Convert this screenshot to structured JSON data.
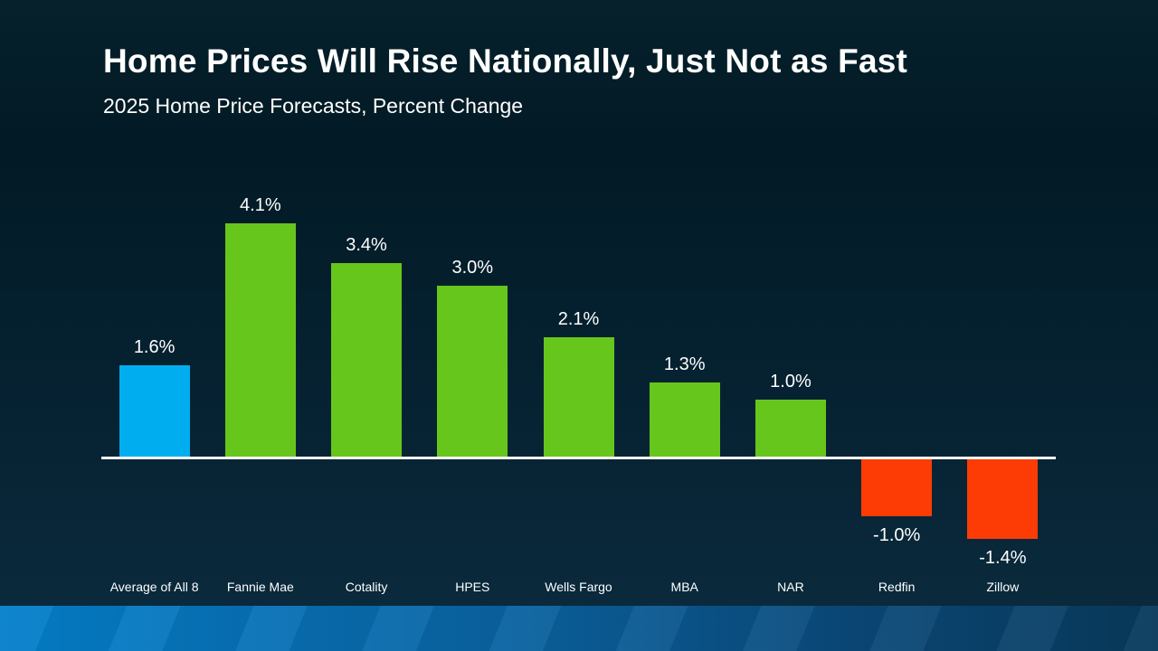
{
  "slide": {
    "title": "Home Prices Will Rise Nationally, Just Not as Fast",
    "subtitle": "2025 Home Price Forecasts, Percent Change"
  },
  "colors": {
    "background_top": "#06212C",
    "background_bottom": "#0B2B3E",
    "accent_blue": "#00AEEF",
    "positive_green": "#66C61C",
    "negative_red": "#FC3C04",
    "axis_line": "#FFFFFF",
    "text": "#FFFFFF",
    "footer_gradient_left": "#0480CC",
    "footer_gradient_right": "#083A5C"
  },
  "chart_data": {
    "type": "bar",
    "title": "Home Prices Will Rise Nationally, Just Not as Fast",
    "subtitle": "2025 Home Price Forecasts, Percent Change",
    "categories": [
      "Average of All 8",
      "Fannie Mae",
      "Cotality",
      "HPES",
      "Wells Fargo",
      "MBA",
      "NAR",
      "Redfin",
      "Zillow"
    ],
    "values": [
      1.6,
      4.1,
      3.4,
      3.0,
      2.1,
      1.3,
      1.0,
      -1.0,
      -1.4
    ],
    "value_labels": [
      "1.6%",
      "4.1%",
      "3.4%",
      "3.0%",
      "2.1%",
      "1.3%",
      "1.0%",
      "-1.0%",
      "-1.4%"
    ],
    "bar_colors": [
      "#00AEEF",
      "#66C61C",
      "#66C61C",
      "#66C61C",
      "#66C61C",
      "#66C61C",
      "#66C61C",
      "#FC3C04",
      "#FC3C04"
    ],
    "xlabel": "",
    "ylabel": "Percent Change",
    "ylim": [
      -1.6,
      4.3
    ],
    "grid": false,
    "legend": null,
    "baseline": 0
  }
}
